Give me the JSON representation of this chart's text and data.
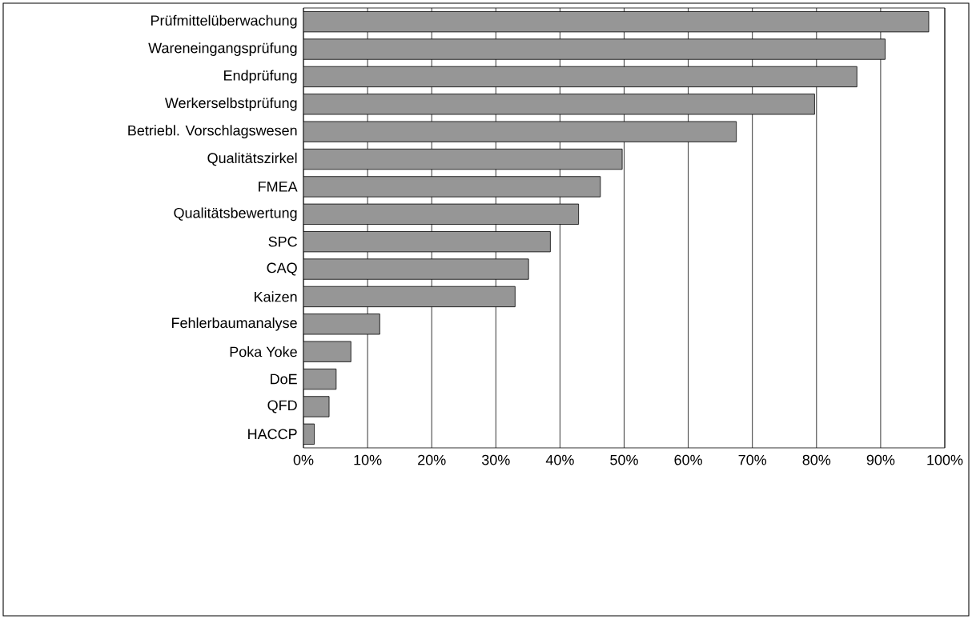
{
  "chart_data": {
    "type": "bar",
    "orientation": "horizontal",
    "categories": [
      "Prüfmittelüberwachung",
      "Wareneingangsprüfung",
      "Endprüfung",
      "Werkerselbstprüfung",
      "Betriebl. Vorschlagswesen",
      "Qualitätszirkel",
      "FMEA",
      "Qualitätsbewertung",
      "SPC",
      "CAQ",
      "Kaizen",
      "Fehlerbaumanalyse",
      "Poka Yoke",
      "DoE",
      "QFD",
      "HACCP"
    ],
    "values": [
      97.5,
      90.7,
      86.3,
      79.7,
      67.5,
      49.7,
      46.3,
      42.9,
      38.5,
      35.1,
      33.0,
      11.9,
      7.4,
      5.1,
      4.0,
      1.7
    ],
    "color": "#969696",
    "xlim": [
      0,
      100
    ],
    "xticks": [
      {
        "value": 0,
        "label": "0%"
      },
      {
        "value": 10,
        "label": "10%"
      },
      {
        "value": 20,
        "label": "20%"
      },
      {
        "value": 30,
        "label": "30%"
      },
      {
        "value": 40,
        "label": "40%"
      },
      {
        "value": 50,
        "label": "50%"
      },
      {
        "value": 60,
        "label": "60%"
      },
      {
        "value": 70,
        "label": "70%"
      },
      {
        "value": 80,
        "label": "80%"
      },
      {
        "value": 90,
        "label": "90%"
      },
      {
        "value": 100,
        "label": "100%"
      }
    ],
    "grid": "x"
  }
}
